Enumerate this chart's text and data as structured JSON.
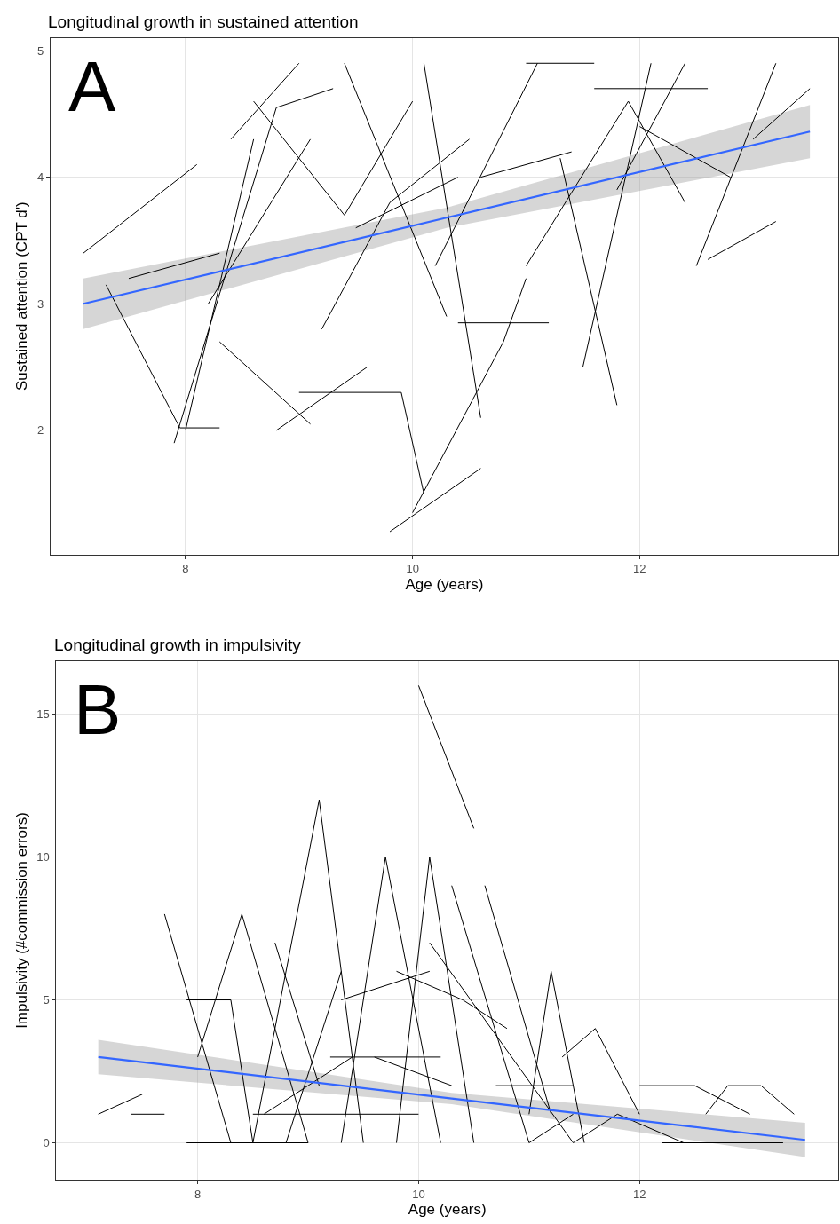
{
  "chart_data": [
    {
      "type": "line",
      "title": "Longitudinal growth in sustained attention",
      "xlabel": "Age (years)",
      "ylabel": "Sustained attention (CPT d')",
      "xlim": [
        6.81,
        13.75
      ],
      "ylim": [
        1.02,
        5.1
      ],
      "xticks": [
        8,
        10,
        12
      ],
      "yticks": [
        2,
        3,
        4,
        5
      ],
      "grid": true,
      "annotations": [
        "A"
      ],
      "series": [
        {
          "color": "#000000",
          "x": [
            7.1,
            8.1
          ],
          "values": [
            3.4,
            4.1
          ]
        },
        {
          "color": "#000000",
          "x": [
            7.3,
            7.95,
            8.3
          ],
          "values": [
            3.15,
            2.02,
            2.02
          ]
        },
        {
          "color": "#000000",
          "x": [
            7.9,
            8.8,
            9.3
          ],
          "values": [
            1.9,
            4.55,
            4.7
          ]
        },
        {
          "color": "#000000",
          "x": [
            8.0,
            8.6
          ],
          "values": [
            2.0,
            4.3
          ]
        },
        {
          "color": "#000000",
          "x": [
            8.4,
            9.0
          ],
          "values": [
            4.3,
            4.9
          ]
        },
        {
          "color": "#000000",
          "x": [
            9.0,
            9.9,
            10.1
          ],
          "values": [
            2.3,
            2.3,
            1.5
          ]
        },
        {
          "color": "#000000",
          "x": [
            9.8,
            10.6
          ],
          "values": [
            1.2,
            1.7
          ]
        },
        {
          "color": "#000000",
          "x": [
            10.0,
            10.8,
            11.0
          ],
          "values": [
            1.35,
            2.7,
            3.2
          ]
        },
        {
          "color": "#000000",
          "x": [
            10.1,
            10.6
          ],
          "values": [
            4.9,
            2.1
          ]
        },
        {
          "color": "#000000",
          "x": [
            10.2,
            11.1
          ],
          "values": [
            3.3,
            4.9
          ]
        },
        {
          "color": "#000000",
          "x": [
            11.0,
            11.6
          ],
          "values": [
            4.9,
            4.9
          ]
        },
        {
          "color": "#000000",
          "x": [
            11.3,
            11.8
          ],
          "values": [
            4.15,
            2.2
          ]
        },
        {
          "color": "#000000",
          "x": [
            11.6,
            12.6
          ],
          "values": [
            4.7,
            4.7
          ]
        },
        {
          "color": "#000000",
          "x": [
            11.5,
            12.1
          ],
          "values": [
            2.5,
            4.9
          ]
        },
        {
          "color": "#000000",
          "x": [
            12.5,
            13.2
          ],
          "values": [
            3.3,
            4.9
          ]
        },
        {
          "color": "#000000",
          "x": [
            13.0,
            13.5
          ],
          "values": [
            4.3,
            4.7
          ]
        },
        {
          "color": "#000000",
          "x": [
            12.6,
            13.2
          ],
          "values": [
            3.35,
            3.65
          ]
        },
        {
          "color": "#000000",
          "x": [
            8.6,
            9.4,
            10.0
          ],
          "values": [
            4.6,
            3.7,
            4.6
          ]
        },
        {
          "color": "#000000",
          "x": [
            9.4,
            10.3
          ],
          "values": [
            4.9,
            2.9
          ]
        },
        {
          "color": "#000000",
          "x": [
            10.4,
            11.2
          ],
          "values": [
            2.85,
            2.85
          ]
        },
        {
          "color": "#000000",
          "x": [
            8.8,
            9.6
          ],
          "values": [
            2.0,
            2.5
          ]
        },
        {
          "color": "#000000",
          "x": [
            7.5,
            8.3
          ],
          "values": [
            3.2,
            3.4
          ]
        },
        {
          "color": "#000000",
          "x": [
            9.2,
            9.8,
            10.5
          ],
          "values": [
            2.8,
            3.8,
            4.3
          ]
        },
        {
          "color": "#000000",
          "x": [
            11.0,
            11.9,
            12.4
          ],
          "values": [
            3.3,
            4.6,
            3.8
          ]
        },
        {
          "color": "#000000",
          "x": [
            10.6,
            11.4
          ],
          "values": [
            4.0,
            4.2
          ]
        },
        {
          "color": "#000000",
          "x": [
            8.2,
            9.1
          ],
          "values": [
            3.0,
            4.3
          ]
        },
        {
          "color": "#000000",
          "x": [
            12.0,
            12.8
          ],
          "values": [
            4.4,
            4.0
          ]
        },
        {
          "color": "#000000",
          "x": [
            9.5,
            10.4
          ],
          "values": [
            3.6,
            4.0
          ]
        },
        {
          "color": "#000000",
          "x": [
            11.8,
            12.4
          ],
          "values": [
            3.9,
            4.9
          ]
        },
        {
          "color": "#000000",
          "x": [
            8.3,
            9.1
          ],
          "values": [
            2.7,
            2.05
          ]
        },
        {
          "color": "#3366ff",
          "x": [
            7.1,
            10.3,
            13.5
          ],
          "values": [
            3.0,
            3.68,
            4.36
          ],
          "lower": [
            2.8,
            3.6,
            4.15
          ],
          "upper": [
            3.2,
            3.76,
            4.57
          ]
        }
      ]
    },
    {
      "type": "line",
      "title": "Longitudinal growth in impulsivity",
      "xlabel": "Age (years)",
      "ylabel": "Impulsivity (#commission errors)",
      "xlim": [
        6.72,
        13.8
      ],
      "ylim": [
        -1.3,
        16.86
      ],
      "xticks": [
        8,
        10,
        12
      ],
      "yticks": [
        0,
        5,
        10,
        15
      ],
      "grid": true,
      "annotations": [
        "B"
      ],
      "series": [
        {
          "color": "#000000",
          "x": [
            7.1,
            7.5
          ],
          "values": [
            1,
            1.7
          ]
        },
        {
          "color": "#000000",
          "x": [
            7.4,
            7.7
          ],
          "values": [
            1,
            1
          ]
        },
        {
          "color": "#000000",
          "x": [
            7.7,
            8.3
          ],
          "values": [
            8,
            0
          ]
        },
        {
          "color": "#000000",
          "x": [
            7.9,
            8.3,
            8.5
          ],
          "values": [
            5,
            5,
            0
          ]
        },
        {
          "color": "#000000",
          "x": [
            8.0,
            8.4,
            9.0
          ],
          "values": [
            3,
            8,
            0
          ]
        },
        {
          "color": "#000000",
          "x": [
            8.5,
            9.1,
            9.5
          ],
          "values": [
            0,
            12,
            0
          ]
        },
        {
          "color": "#000000",
          "x": [
            9.3,
            9.7,
            10.2
          ],
          "values": [
            0,
            10,
            0
          ]
        },
        {
          "color": "#000000",
          "x": [
            9.8,
            10.1,
            10.5
          ],
          "values": [
            0,
            10,
            0
          ]
        },
        {
          "color": "#000000",
          "x": [
            10.0,
            10.5
          ],
          "values": [
            16,
            11
          ]
        },
        {
          "color": "#000000",
          "x": [
            10.6,
            11.2
          ],
          "values": [
            9,
            1
          ]
        },
        {
          "color": "#000000",
          "x": [
            11.0,
            11.2,
            11.5
          ],
          "values": [
            1,
            6,
            0
          ]
        },
        {
          "color": "#000000",
          "x": [
            7.9,
            9.0
          ],
          "values": [
            0,
            0
          ]
        },
        {
          "color": "#000000",
          "x": [
            12.0,
            12.5,
            13.0
          ],
          "values": [
            2,
            2,
            1
          ]
        },
        {
          "color": "#000000",
          "x": [
            12.6,
            12.8,
            13.1,
            13.4
          ],
          "values": [
            1,
            2,
            2,
            1
          ]
        },
        {
          "color": "#000000",
          "x": [
            8.5,
            10.0
          ],
          "values": [
            1,
            1
          ]
        },
        {
          "color": "#000000",
          "x": [
            9.2,
            10.2
          ],
          "values": [
            3,
            3
          ]
        },
        {
          "color": "#000000",
          "x": [
            9.8,
            10.4,
            10.8
          ],
          "values": [
            6,
            5,
            4
          ]
        },
        {
          "color": "#000000",
          "x": [
            9.3,
            10.1
          ],
          "values": [
            5,
            6
          ]
        },
        {
          "color": "#000000",
          "x": [
            10.3,
            11.0,
            11.4
          ],
          "values": [
            9,
            0,
            1
          ]
        },
        {
          "color": "#000000",
          "x": [
            8.7,
            9.1
          ],
          "values": [
            7,
            2
          ]
        },
        {
          "color": "#000000",
          "x": [
            11.4,
            11.8,
            12.4
          ],
          "values": [
            0,
            1,
            0
          ]
        },
        {
          "color": "#000000",
          "x": [
            12.2,
            13.3
          ],
          "values": [
            0,
            0
          ]
        },
        {
          "color": "#000000",
          "x": [
            10.7,
            11.4
          ],
          "values": [
            2,
            2
          ]
        },
        {
          "color": "#000000",
          "x": [
            8.8,
            9.3
          ],
          "values": [
            0,
            6
          ]
        },
        {
          "color": "#000000",
          "x": [
            9.6,
            10.3
          ],
          "values": [
            3,
            2
          ]
        },
        {
          "color": "#000000",
          "x": [
            11.3,
            11.6,
            12.0
          ],
          "values": [
            3,
            4,
            1
          ]
        },
        {
          "color": "#000000",
          "x": [
            10.1,
            11.4
          ],
          "values": [
            7,
            0
          ]
        },
        {
          "color": "#000000",
          "x": [
            8.6,
            9.4
          ],
          "values": [
            1,
            3
          ]
        },
        {
          "color": "#3366ff",
          "x": [
            7.1,
            10.3,
            13.5
          ],
          "values": [
            3.0,
            1.55,
            0.1
          ],
          "lower": [
            2.4,
            1.35,
            -0.5
          ],
          "upper": [
            3.6,
            1.75,
            0.7
          ]
        }
      ]
    }
  ]
}
